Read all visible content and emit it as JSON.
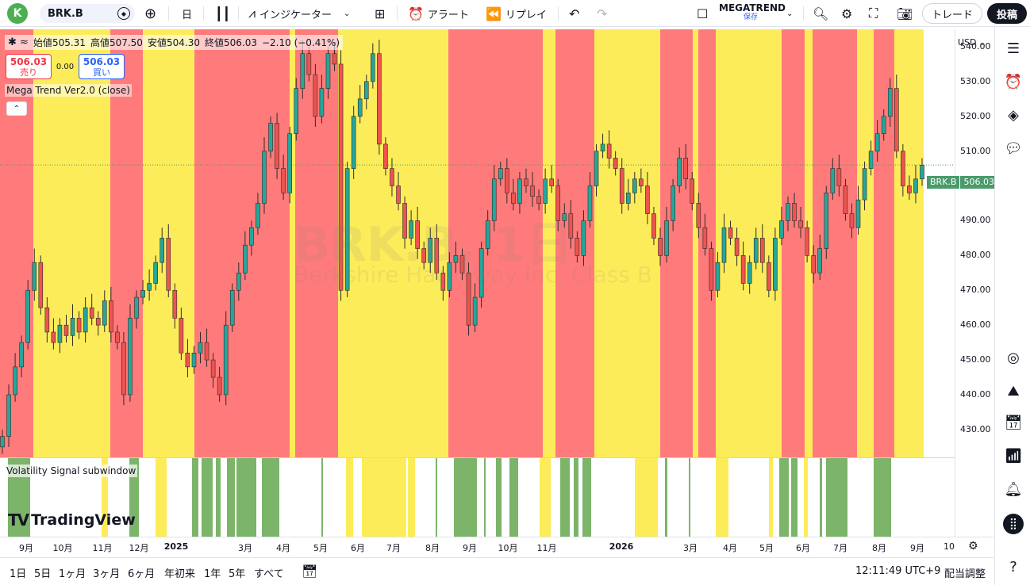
{
  "topbar": {
    "avatar_letter": "K",
    "symbol": "BRK.B",
    "interval": "日",
    "indicators_label": "インジケーター",
    "alert_label": "アラート",
    "replay_label": "リプレイ",
    "layout_name": "MEGATREND",
    "layout_status": "保存",
    "trade_label": "トレード",
    "post_label": "投稿"
  },
  "legend": {
    "open_label": "始値",
    "open": "505.31",
    "high_label": "高値",
    "high": "507.50",
    "low_label": "安値",
    "low": "504.30",
    "close_label": "終値",
    "close": "506.03",
    "change": "−2.10 (−0.41%)"
  },
  "order": {
    "sell_price": "506.03",
    "sell_label": "売り",
    "spread": "0.00",
    "buy_price": "506.03",
    "buy_label": "買い"
  },
  "indicator_name": "Mega Trend Ver2.0 (close)",
  "subwindow_name": "Volatility Signal subwindow",
  "logo_text": "TradingView",
  "watermark": {
    "symbol": "BRK.B, 1日",
    "description": "Berkshire Hathaway Inc. Class B"
  },
  "price_axis": {
    "currency": "USD",
    "labels": [
      "540.00",
      "530.00",
      "520.00",
      "510.00",
      "500.00",
      "490.00",
      "480.00",
      "470.00",
      "460.00",
      "450.00",
      "440.00",
      "430.00"
    ],
    "last_symbol": "BRK.B",
    "last_value": "506.03"
  },
  "time_axis": {
    "labels": [
      {
        "text": "9月",
        "bold": false
      },
      {
        "text": "10月",
        "bold": false
      },
      {
        "text": "11月",
        "bold": false
      },
      {
        "text": "12月",
        "bold": false
      },
      {
        "text": "2025",
        "bold": true
      },
      {
        "text": "3月",
        "bold": false
      },
      {
        "text": "4月",
        "bold": false
      },
      {
        "text": "5月",
        "bold": false
      },
      {
        "text": "6月",
        "bold": false
      },
      {
        "text": "7月",
        "bold": false
      },
      {
        "text": "8月",
        "bold": false
      },
      {
        "text": "9月",
        "bold": false
      },
      {
        "text": "10月",
        "bold": false
      },
      {
        "text": "11月",
        "bold": false
      },
      {
        "text": "2026",
        "bold": true
      },
      {
        "text": "3月",
        "bold": false
      },
      {
        "text": "4月",
        "bold": false
      },
      {
        "text": "5月",
        "bold": false
      },
      {
        "text": "6月",
        "bold": false
      },
      {
        "text": "7月",
        "bold": false
      },
      {
        "text": "8月",
        "bold": false
      },
      {
        "text": "9月",
        "bold": false
      },
      {
        "text": "10",
        "bold": false
      }
    ]
  },
  "bottombar": {
    "ranges": [
      "1日",
      "5日",
      "1ヶ月",
      "3ヶ月",
      "6ヶ月",
      "年初来",
      "1年",
      "5年",
      "すべて"
    ],
    "clock": "12:11:49 UTC+9",
    "adjust_label": "配当調整"
  },
  "colors": {
    "bull_band": "#fdec5a",
    "bear_band": "#ff7b7b",
    "candle_up": "#26a69a",
    "candle_down": "#ef5350",
    "signal": "#7cb46a"
  },
  "chart_data": {
    "type": "candlestick",
    "ylim": [
      422,
      545
    ],
    "closes": [
      428,
      440,
      448,
      455,
      470,
      478,
      465,
      458,
      455,
      460,
      457,
      462,
      458,
      465,
      462,
      460,
      467,
      458,
      455,
      440,
      462,
      468,
      470,
      472,
      478,
      485,
      470,
      462,
      452,
      448,
      452,
      455,
      450,
      445,
      440,
      460,
      470,
      475,
      483,
      488,
      495,
      510,
      518,
      505,
      498,
      515,
      528,
      538,
      532,
      520,
      528,
      538,
      535,
      470,
      505,
      520,
      525,
      530,
      538,
      512,
      505,
      500,
      495,
      485,
      490,
      482,
      478,
      485,
      475,
      470,
      478,
      480,
      475,
      460,
      468,
      482,
      490,
      502,
      505,
      498,
      495,
      502,
      500,
      497,
      495,
      502,
      500,
      490,
      492,
      485,
      480,
      490,
      500,
      510,
      512,
      508,
      505,
      495,
      498,
      502,
      500,
      492,
      485,
      480,
      490,
      500,
      508,
      502,
      495,
      488,
      482,
      470,
      478,
      488,
      485,
      480,
      472,
      478,
      485,
      478,
      470,
      485,
      490,
      495,
      490,
      488,
      480,
      475,
      482,
      498,
      505,
      500,
      492,
      488,
      496,
      505,
      510,
      515,
      520,
      528,
      510,
      500,
      498,
      502,
      506
    ]
  }
}
